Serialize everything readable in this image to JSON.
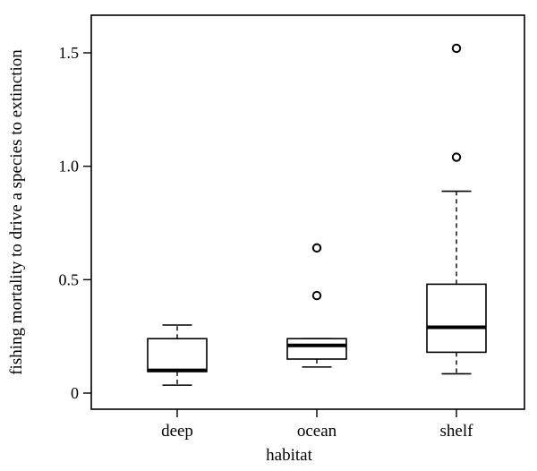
{
  "chart_data": {
    "type": "box",
    "xlabel": "habitat",
    "ylabel": "fishing mortality to drive a species to extinction",
    "ylim": [
      -0.08,
      1.65
    ],
    "yticks": [
      0,
      0.5,
      1.0,
      1.5
    ],
    "ytick_labels": [
      "0",
      "0.5",
      "1.0",
      "1.5"
    ],
    "grid": false,
    "categories": [
      "deep",
      "ocean",
      "shelf"
    ],
    "boxes": [
      {
        "category": "deep",
        "whisker_low": 0.035,
        "q1": 0.095,
        "median": 0.1,
        "q3": 0.24,
        "whisker_high": 0.3,
        "outliers": []
      },
      {
        "category": "ocean",
        "whisker_low": 0.115,
        "q1": 0.15,
        "median": 0.21,
        "q3": 0.24,
        "whisker_high": 0.24,
        "outliers": [
          0.43,
          0.64
        ]
      },
      {
        "category": "shelf",
        "whisker_low": 0.085,
        "q1": 0.18,
        "median": 0.29,
        "q3": 0.48,
        "whisker_high": 0.89,
        "outliers": [
          1.04,
          1.52
        ]
      }
    ]
  }
}
